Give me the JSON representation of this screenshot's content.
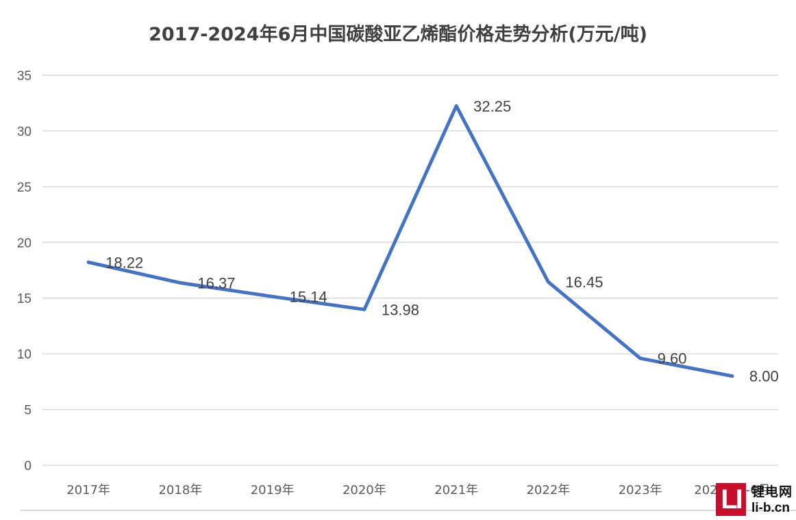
{
  "chart_data": {
    "type": "line",
    "title": "2017-2024年6月中国碳酸亚乙烯酯价格走势分析(万元/吨)",
    "categories": [
      "2017年",
      "2018年",
      "2019年",
      "2020年",
      "2021年",
      "2022年",
      "2023年",
      "2024年1-6月"
    ],
    "series": [
      {
        "values": [
          18.22,
          16.37,
          15.14,
          13.98,
          32.25,
          16.45,
          9.6,
          8.0
        ],
        "labels": [
          "18.22",
          "16.37",
          "15.14",
          "13.98",
          "32.25",
          "16.45",
          "9.60",
          "8.00"
        ]
      }
    ],
    "ylim": [
      0,
      35
    ],
    "yticks": [
      "0",
      "5",
      "10",
      "15",
      "20",
      "25",
      "30",
      "35"
    ],
    "grid": true,
    "legend": "none",
    "line_color": "#4472C4"
  },
  "watermark": {
    "logo": "LI",
    "name": "锂电网",
    "url": "li-b.cn"
  }
}
